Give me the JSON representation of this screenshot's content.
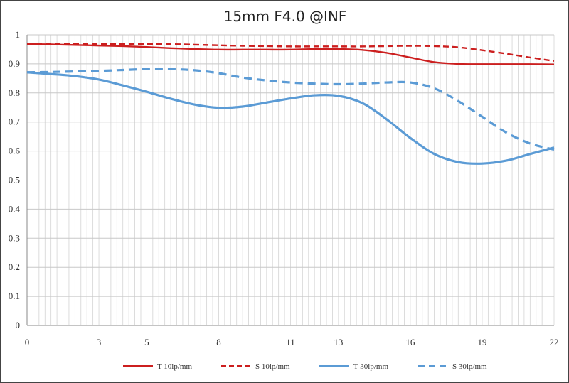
{
  "chart_data": {
    "type": "line",
    "title": "15mm F4.0 @INF",
    "xlabel": "",
    "ylabel": "",
    "xlim": [
      0,
      22
    ],
    "ylim": [
      0,
      1
    ],
    "x_ticks": [
      "0",
      "3",
      "5",
      "8",
      "11",
      "13",
      "16",
      "19",
      "22"
    ],
    "y_ticks": [
      "0",
      "0.1",
      "0.2",
      "0.3",
      "0.4",
      "0.5",
      "0.6",
      "0.7",
      "0.8",
      "0.9",
      "1"
    ],
    "grid": true,
    "legend_position": "bottom",
    "x": [
      0,
      1,
      2,
      3,
      4,
      5,
      6,
      7,
      8,
      9,
      10,
      11,
      12,
      13,
      14,
      15,
      16,
      17,
      18,
      19,
      20,
      21,
      22
    ],
    "series": [
      {
        "name": "T 10lp/mm",
        "color": "#cc1f1f",
        "dash": "solid",
        "values": [
          0.968,
          0.967,
          0.965,
          0.963,
          0.961,
          0.958,
          0.954,
          0.951,
          0.949,
          0.949,
          0.949,
          0.949,
          0.951,
          0.951,
          0.948,
          0.938,
          0.922,
          0.906,
          0.9,
          0.899,
          0.899,
          0.899,
          0.898
        ]
      },
      {
        "name": "S 10lp/mm",
        "color": "#cc1f1f",
        "dash": "dashed",
        "values": [
          0.968,
          0.968,
          0.968,
          0.968,
          0.968,
          0.968,
          0.968,
          0.966,
          0.964,
          0.962,
          0.961,
          0.96,
          0.96,
          0.96,
          0.96,
          0.961,
          0.962,
          0.961,
          0.957,
          0.947,
          0.935,
          0.922,
          0.91
        ]
      },
      {
        "name": "T 30lp/mm",
        "color": "#5b9bd5",
        "dash": "solid",
        "values": [
          0.871,
          0.865,
          0.858,
          0.846,
          0.826,
          0.804,
          0.78,
          0.76,
          0.749,
          0.753,
          0.767,
          0.781,
          0.792,
          0.79,
          0.765,
          0.71,
          0.645,
          0.59,
          0.562,
          0.557,
          0.567,
          0.59,
          0.612
        ]
      },
      {
        "name": "S 30lp/mm",
        "color": "#5b9bd5",
        "dash": "dashed",
        "values": [
          0.871,
          0.872,
          0.874,
          0.876,
          0.879,
          0.882,
          0.882,
          0.878,
          0.868,
          0.853,
          0.843,
          0.836,
          0.832,
          0.83,
          0.832,
          0.836,
          0.836,
          0.816,
          0.772,
          0.718,
          0.664,
          0.626,
          0.605
        ]
      }
    ]
  }
}
